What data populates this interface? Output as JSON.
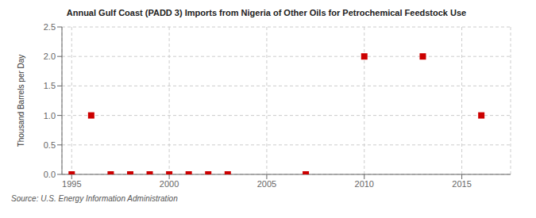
{
  "chart_data": {
    "type": "scatter",
    "title": "Annual Gulf Coast (PADD 3) Imports from Nigeria of Other Oils for Petrochemical Feedstock Use",
    "ylabel": "Thousand Barrels per Day",
    "annotations": [
      "Source: U.S. Energy Information Administration"
    ],
    "x": [
      1995,
      1996,
      1997,
      1998,
      1999,
      2000,
      2001,
      2002,
      2003,
      2007,
      2010,
      2013,
      2016
    ],
    "values": [
      0.0,
      1.0,
      0.0,
      0.0,
      0.0,
      0.0,
      0.0,
      0.0,
      0.0,
      0.0,
      2.0,
      2.0,
      1.0
    ],
    "color": "#cc0000",
    "marker": "square",
    "xlim": [
      1994.5,
      2017.5
    ],
    "xticks": [
      1995,
      2000,
      2005,
      2010,
      2015
    ],
    "ylim": [
      0.0,
      2.5
    ],
    "yticks": [
      {
        "value": 0.0,
        "label": "0.0"
      },
      0.5,
      {
        "value": 1.0,
        "label": "1.0"
      },
      1.5,
      {
        "value": 2.0,
        "label": "2.0"
      },
      2.5
    ],
    "grid": true
  }
}
